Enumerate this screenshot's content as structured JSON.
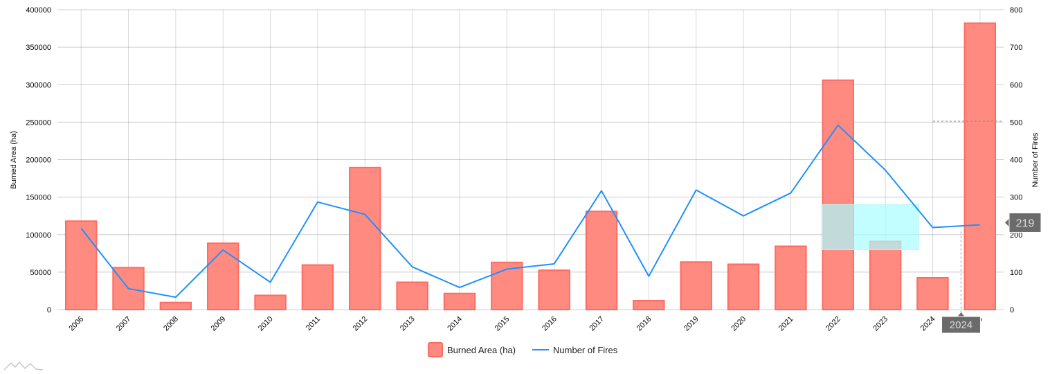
{
  "chart_data": {
    "type": "bar",
    "categories": [
      "2006",
      "2007",
      "2008",
      "2009",
      "2010",
      "2011",
      "2012",
      "2013",
      "2014",
      "2015",
      "2016",
      "2017",
      "2018",
      "2019",
      "2020",
      "2021",
      "2022",
      "2023",
      "2024",
      "2025"
    ],
    "series": [
      {
        "name": "Burned Area (ha)",
        "type": "bar",
        "axis": "left",
        "color": "#ff8a80",
        "border": "#ff6b62",
        "values": [
          118000,
          56000,
          9500,
          88500,
          19000,
          59500,
          189500,
          36500,
          21500,
          63000,
          52500,
          131000,
          12000,
          63500,
          60500,
          84500,
          306000,
          91000,
          42500,
          382000
        ]
      },
      {
        "name": "Number of Fires",
        "type": "line",
        "axis": "right",
        "color": "#1e90ff",
        "values": [
          217,
          56,
          33,
          159,
          73,
          287,
          254,
          114,
          59,
          108,
          122,
          317,
          89,
          319,
          250,
          311,
          492,
          372,
          219,
          226
        ]
      }
    ],
    "ylabel": "Burned Area (ha)",
    "ylim": [
      0,
      400000
    ],
    "yticks": [
      "0",
      "50000",
      "100000",
      "150000",
      "200000",
      "250000",
      "300000",
      "350000",
      "400000"
    ],
    "y2label": "Number of Fires",
    "y2lim": [
      0,
      800
    ],
    "y2ticks": [
      "0",
      "100",
      "200",
      "300",
      "400",
      "500",
      "600",
      "700",
      "800"
    ],
    "grid": true,
    "legend_position": "bottom-center",
    "cursor": {
      "category": "2024",
      "value_label": "219",
      "x_label": "2024"
    }
  }
}
